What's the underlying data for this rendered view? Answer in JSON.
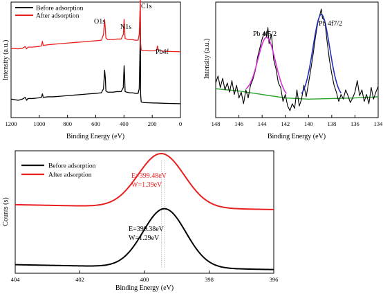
{
  "chart_data": [
    {
      "id": "survey",
      "type": "line",
      "xlabel": "Binding Energy (eV)",
      "ylabel": "Intensity (a.u.)",
      "xlim": [
        1200,
        0
      ],
      "x_reversed": true,
      "x_ticks": [
        1200,
        1000,
        800,
        600,
        400,
        200,
        0
      ],
      "legend": {
        "placement": "top-left"
      },
      "annotations": [
        "O1s",
        "N1s",
        "C1s",
        "Pb4f"
      ],
      "series": [
        {
          "name": "Before adsorption",
          "color": "#000000",
          "baseline": 0.12,
          "points": [
            [
              1200,
              0.16
            ],
            [
              1150,
              0.15
            ],
            [
              1120,
              0.16
            ],
            [
              1100,
              0.175
            ],
            [
              1090,
              0.15
            ],
            [
              1080,
              0.165
            ],
            [
              1050,
              0.165
            ],
            [
              1010,
              0.17
            ],
            [
              985,
              0.175
            ],
            [
              978,
              0.205
            ],
            [
              972,
              0.175
            ],
            [
              940,
              0.18
            ],
            [
              900,
              0.18
            ],
            [
              850,
              0.185
            ],
            [
              800,
              0.19
            ],
            [
              750,
              0.195
            ],
            [
              700,
              0.2
            ],
            [
              650,
              0.205
            ],
            [
              600,
              0.21
            ],
            [
              560,
              0.215
            ],
            [
              545,
              0.25
            ],
            [
              537,
              0.41
            ],
            [
              532,
              0.34
            ],
            [
              528,
              0.23
            ],
            [
              515,
              0.22
            ],
            [
              480,
              0.22
            ],
            [
              450,
              0.225
            ],
            [
              420,
              0.225
            ],
            [
              405,
              0.26
            ],
            [
              399,
              0.45
            ],
            [
              395,
              0.35
            ],
            [
              392,
              0.225
            ],
            [
              380,
              0.22
            ],
            [
              360,
              0.215
            ],
            [
              340,
              0.215
            ],
            [
              320,
              0.21
            ],
            [
              300,
              0.21
            ],
            [
              292,
              0.25
            ],
            [
              286,
              0.62
            ],
            [
              284,
              0.83
            ],
            [
              282,
              0.2
            ],
            [
              278,
              0.135
            ],
            [
              260,
              0.13
            ],
            [
              220,
              0.128
            ],
            [
              180,
              0.126
            ],
            [
              160,
              0.126
            ],
            [
              120,
              0.124
            ],
            [
              60,
              0.122
            ],
            [
              0,
              0.12
            ]
          ]
        },
        {
          "name": "After adsorption",
          "color": "#e8201f",
          "baseline": 0.57,
          "points": [
            [
              1200,
              0.6
            ],
            [
              1150,
              0.595
            ],
            [
              1120,
              0.6
            ],
            [
              1100,
              0.615
            ],
            [
              1090,
              0.595
            ],
            [
              1080,
              0.61
            ],
            [
              1050,
              0.61
            ],
            [
              1010,
              0.615
            ],
            [
              985,
              0.62
            ],
            [
              978,
              0.66
            ],
            [
              972,
              0.625
            ],
            [
              940,
              0.63
            ],
            [
              900,
              0.635
            ],
            [
              850,
              0.64
            ],
            [
              800,
              0.645
            ],
            [
              750,
              0.65
            ],
            [
              700,
              0.655
            ],
            [
              650,
              0.66
            ],
            [
              600,
              0.665
            ],
            [
              560,
              0.67
            ],
            [
              545,
              0.72
            ],
            [
              537,
              0.85
            ],
            [
              532,
              0.76
            ],
            [
              528,
              0.69
            ],
            [
              515,
              0.675
            ],
            [
              480,
              0.675
            ],
            [
              450,
              0.68
            ],
            [
              420,
              0.68
            ],
            [
              405,
              0.72
            ],
            [
              399,
              0.85
            ],
            [
              395,
              0.75
            ],
            [
              392,
              0.685
            ],
            [
              380,
              0.68
            ],
            [
              360,
              0.675
            ],
            [
              340,
              0.675
            ],
            [
              320,
              0.67
            ],
            [
              300,
              0.67
            ],
            [
              292,
              0.72
            ],
            [
              286,
              0.95
            ],
            [
              284,
              1.02
            ],
            [
              282,
              0.64
            ],
            [
              278,
              0.585
            ],
            [
              260,
              0.58
            ],
            [
              220,
              0.578
            ],
            [
              185,
              0.578
            ],
            [
              168,
              0.585
            ],
            [
              163,
              0.62
            ],
            [
              160,
              0.6
            ],
            [
              157,
              0.59
            ],
            [
              152,
              0.58
            ],
            [
              120,
              0.575
            ],
            [
              60,
              0.572
            ],
            [
              0,
              0.57
            ]
          ]
        }
      ]
    },
    {
      "id": "pb4f",
      "type": "line",
      "xlabel": "Binding Energy (eV)",
      "ylabel": "Intensity (a.u.)",
      "xlim": [
        148,
        134
      ],
      "x_reversed": true,
      "x_ticks": [
        148,
        146,
        144,
        142,
        140,
        138,
        136,
        134
      ],
      "annotations": [
        "Pb 4f5/2",
        "Pb 4f7/2"
      ],
      "series": [
        {
          "role": "raw",
          "color": "#000000",
          "points": [
            [
              148,
              0.3
            ],
            [
              147.8,
              0.36
            ],
            [
              147.6,
              0.26
            ],
            [
              147.4,
              0.34
            ],
            [
              147.2,
              0.24
            ],
            [
              147.0,
              0.3
            ],
            [
              146.8,
              0.22
            ],
            [
              146.6,
              0.32
            ],
            [
              146.4,
              0.2
            ],
            [
              146.2,
              0.28
            ],
            [
              146.0,
              0.17
            ],
            [
              145.8,
              0.22
            ],
            [
              145.6,
              0.12
            ],
            [
              145.4,
              0.24
            ],
            [
              145.2,
              0.17
            ],
            [
              145.0,
              0.28
            ],
            [
              144.8,
              0.33
            ],
            [
              144.6,
              0.4
            ],
            [
              144.4,
              0.52
            ],
            [
              144.2,
              0.6
            ],
            [
              144.0,
              0.68
            ],
            [
              143.8,
              0.74
            ],
            [
              143.6,
              0.7
            ],
            [
              143.5,
              0.78
            ],
            [
              143.4,
              0.64
            ],
            [
              143.2,
              0.72
            ],
            [
              143.0,
              0.5
            ],
            [
              142.8,
              0.42
            ],
            [
              142.6,
              0.3
            ],
            [
              142.4,
              0.26
            ],
            [
              142.2,
              0.14
            ],
            [
              142.0,
              0.2
            ],
            [
              141.8,
              0.1
            ],
            [
              141.6,
              0.06
            ],
            [
              141.4,
              0.12
            ],
            [
              141.2,
              0.08
            ],
            [
              141.0,
              0.24
            ],
            [
              140.8,
              0.1
            ],
            [
              140.6,
              0.16
            ],
            [
              140.4,
              0.28
            ],
            [
              140.2,
              0.18
            ],
            [
              140.0,
              0.3
            ],
            [
              139.8,
              0.42
            ],
            [
              139.6,
              0.55
            ],
            [
              139.4,
              0.7
            ],
            [
              139.2,
              0.82
            ],
            [
              139.0,
              0.9
            ],
            [
              138.9,
              0.94
            ],
            [
              138.8,
              0.86
            ],
            [
              138.6,
              0.84
            ],
            [
              138.4,
              0.66
            ],
            [
              138.2,
              0.5
            ],
            [
              138.0,
              0.38
            ],
            [
              137.8,
              0.28
            ],
            [
              137.6,
              0.22
            ],
            [
              137.4,
              0.14
            ],
            [
              137.2,
              0.2
            ],
            [
              137.0,
              0.16
            ],
            [
              136.8,
              0.24
            ],
            [
              136.6,
              0.19
            ],
            [
              136.4,
              0.13
            ],
            [
              136.2,
              0.17
            ],
            [
              136.0,
              0.22
            ],
            [
              135.8,
              0.32
            ],
            [
              135.6,
              0.19
            ],
            [
              135.4,
              0.24
            ],
            [
              135.2,
              0.14
            ],
            [
              135.0,
              0.2
            ],
            [
              134.8,
              0.12
            ],
            [
              134.6,
              0.26
            ],
            [
              134.4,
              0.16
            ],
            [
              134.2,
              0.22
            ],
            [
              134.0,
              0.27
            ]
          ]
        },
        {
          "role": "background",
          "color": "#27a327",
          "points": [
            [
              148,
              0.25
            ],
            [
              146,
              0.23
            ],
            [
              144,
              0.2
            ],
            [
              142,
              0.17
            ],
            [
              140,
              0.16
            ],
            [
              138,
              0.165
            ],
            [
              136,
              0.17
            ],
            [
              134,
              0.18
            ]
          ]
        },
        {
          "role": "fit Pb 4f5/2",
          "color": "#d832d8",
          "center": 143.6,
          "width": 0.75,
          "height": 0.5,
          "range": [
            145.4,
            141.9
          ]
        },
        {
          "role": "fit Pb 4f7/2",
          "color": "#2431b8",
          "center": 138.9,
          "width": 0.72,
          "height": 0.73,
          "range": [
            140.6,
            137.2
          ]
        }
      ]
    },
    {
      "id": "n1s",
      "type": "line",
      "xlabel": "Binding Energy (eV)",
      "ylabel": "Counts (s)",
      "xlim": [
        404,
        396
      ],
      "x_reversed": true,
      "x_ticks": [
        404,
        402,
        400,
        398,
        396
      ],
      "legend": {
        "placement": "top-left"
      },
      "series": [
        {
          "name": "Before adsorption",
          "color": "#000000",
          "center": 399.38,
          "fwhm": 1.29,
          "height": 0.48,
          "baseline": 0.03,
          "slope": 0.005
        },
        {
          "name": "After adsorption",
          "color": "#e8201f",
          "center": 399.48,
          "fwhm": 1.39,
          "height": 0.44,
          "baseline": 0.52,
          "slope": 0.005
        }
      ],
      "annotations": [
        {
          "lines": [
            "E=399.48eV",
            "W=1.39eV"
          ],
          "color": "#e8201f"
        },
        {
          "lines": [
            "E=399.38eV",
            "W=1.29eV"
          ],
          "color": "#000000"
        }
      ],
      "reference_lines_x": [
        399.38,
        399.48
      ]
    }
  ]
}
